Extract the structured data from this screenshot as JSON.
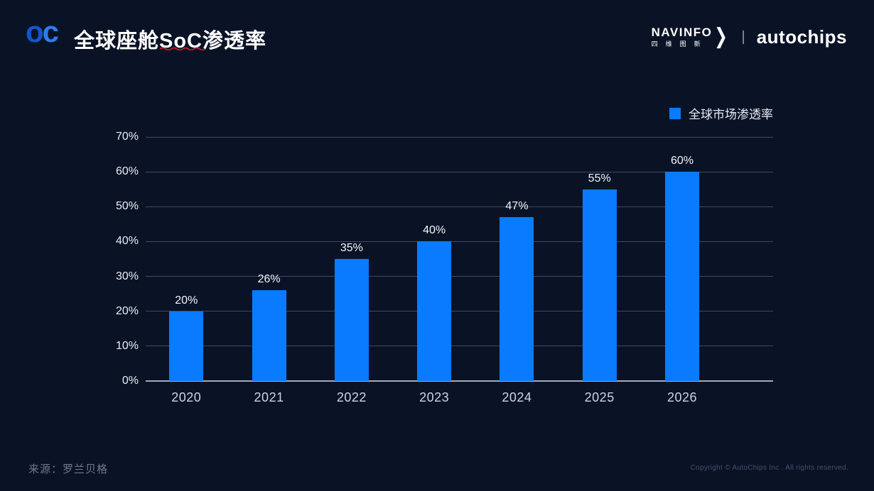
{
  "header": {
    "logo_text_o": "o",
    "logo_text_c": "c",
    "title": "全球座舱SoC渗透率",
    "brand": {
      "navinfo_en": "NAVINFO",
      "navinfo_cn": "四维图新",
      "chevron": "❯",
      "divider": "|",
      "autochips": "autochips"
    }
  },
  "legend": {
    "label": "全球市场渗透率",
    "swatch_color": "#0a7bfe"
  },
  "chart_data": {
    "type": "bar",
    "title": "全球座舱SoC渗透率",
    "categories": [
      "2020",
      "2021",
      "2022",
      "2023",
      "2024",
      "2025",
      "2026"
    ],
    "values": [
      20,
      26,
      35,
      40,
      47,
      55,
      60
    ],
    "value_labels": [
      "20%",
      "26%",
      "35%",
      "40%",
      "47%",
      "55%",
      "60%"
    ],
    "xlabel": "",
    "ylabel": "",
    "ylim": [
      0,
      70
    ],
    "ytick_step": 10,
    "ytick_labels": [
      "0%",
      "10%",
      "20%",
      "30%",
      "40%",
      "50%",
      "60%",
      "70%"
    ],
    "legend_entries": [
      "全球市场渗透率"
    ],
    "legend_position": "top-right",
    "grid": "horizontal",
    "bar_color": "#0a7bfe",
    "background_color": "#0a1326"
  },
  "footer": {
    "source": "来源：罗兰贝格",
    "copyright": "Copyright © AutoChips Inc . All rights reserved."
  }
}
